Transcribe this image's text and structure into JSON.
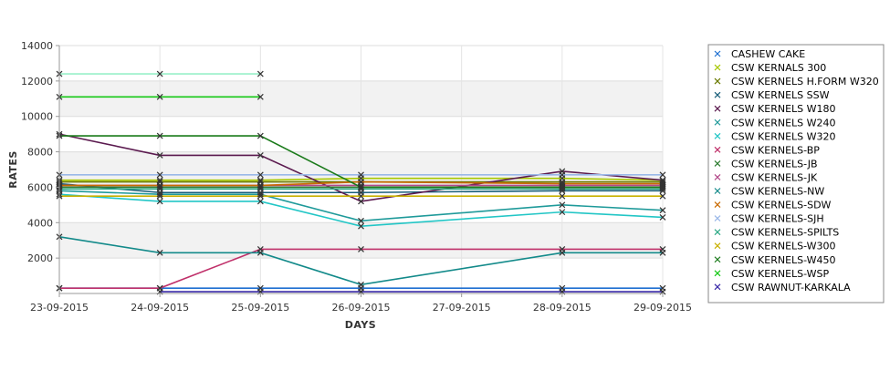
{
  "chart_data": {
    "type": "line",
    "xlabel": "DAYS",
    "ylabel": "RATES",
    "categories": [
      "23-09-2015",
      "24-09-2015",
      "25-09-2015",
      "26-09-2015",
      "27-09-2015",
      "28-09-2015",
      "29-09-2015"
    ],
    "ylim": [
      0,
      14000
    ],
    "yticks": [
      2000,
      4000,
      6000,
      8000,
      10000,
      12000,
      14000
    ],
    "grid": true,
    "legend_position": "right",
    "series": [
      {
        "name": "CASHEW CAKE",
        "color": "#1f6fd1",
        "values": [
          300,
          300,
          300,
          300,
          null,
          300,
          300
        ]
      },
      {
        "name": "CSW KERNALS 300",
        "color": "#a8c800",
        "values": [
          6400,
          6400,
          6400,
          6500,
          null,
          6500,
          6400
        ]
      },
      {
        "name": "CSW KERNELS H.FORM W320",
        "color": "#6b7a00",
        "values": [
          6300,
          6300,
          6300,
          6300,
          null,
          6300,
          6300
        ]
      },
      {
        "name": "CSW KERNELS SSW",
        "color": "#1a5f7a",
        "values": [
          6200,
          5700,
          5700,
          5700,
          null,
          5800,
          5800
        ]
      },
      {
        "name": "CSW KERNELS W180",
        "color": "#5b1a4f",
        "values": [
          9000,
          7800,
          7800,
          5200,
          null,
          6900,
          6400
        ]
      },
      {
        "name": "CSW KERNELS W240",
        "color": "#1f9a9a",
        "values": [
          5800,
          5600,
          5600,
          4100,
          null,
          5000,
          4700
        ]
      },
      {
        "name": "CSW KERNELS W320",
        "color": "#22c6c6",
        "values": [
          5600,
          5200,
          5200,
          3800,
          null,
          4600,
          4300
        ]
      },
      {
        "name": "CSW KERNELS-BP",
        "color": "#c0306a",
        "values": [
          300,
          300,
          2500,
          2500,
          null,
          2500,
          2500
        ]
      },
      {
        "name": "CSW KERNELS-JB",
        "color": "#2e7d32",
        "values": [
          6000,
          6000,
          6000,
          6000,
          null,
          6000,
          6000
        ]
      },
      {
        "name": "CSW KERNELS-JK",
        "color": "#b34a8a",
        "values": [
          6100,
          6100,
          6100,
          6100,
          null,
          6100,
          6100
        ]
      },
      {
        "name": "CSW KERNELS-NW",
        "color": "#138a8a",
        "values": [
          3200,
          2300,
          2300,
          500,
          null,
          2300,
          2300
        ]
      },
      {
        "name": "CSW KERNELS-SDW",
        "color": "#c86a00",
        "values": [
          6100,
          6100,
          6100,
          6300,
          null,
          6200,
          6200
        ]
      },
      {
        "name": "CSW KERNELS-SJH",
        "color": "#9ab8e8",
        "values": [
          6700,
          6700,
          6700,
          6700,
          null,
          6700,
          6700
        ]
      },
      {
        "name": "CSW KERNELS-SPILTS",
        "color": "#2aa884",
        "values": [
          5900,
          5900,
          5900,
          5900,
          null,
          5900,
          5900
        ]
      },
      {
        "name": "CSW KERNELS-W300",
        "color": "#c8b000",
        "values": [
          5500,
          5500,
          5500,
          5500,
          null,
          5500,
          5500
        ]
      },
      {
        "name": "CSW KERNELS-W450",
        "color": "#1a7a1a",
        "values": [
          8900,
          8900,
          8900,
          6000,
          null,
          6000,
          6000
        ]
      },
      {
        "name": "CSW KERNELS-WSP",
        "color": "#16c816",
        "values": [
          11100,
          11100,
          11100,
          null,
          null,
          null,
          null
        ]
      },
      {
        "name": "CSW RAWNUT-KARKALA",
        "color": "#3a2aa8",
        "values": [
          null,
          100,
          100,
          100,
          null,
          100,
          100
        ]
      },
      {
        "name": "",
        "color": "#98f0c8",
        "values": [
          12400,
          12400,
          12400,
          null,
          null,
          null,
          null
        ]
      }
    ]
  }
}
